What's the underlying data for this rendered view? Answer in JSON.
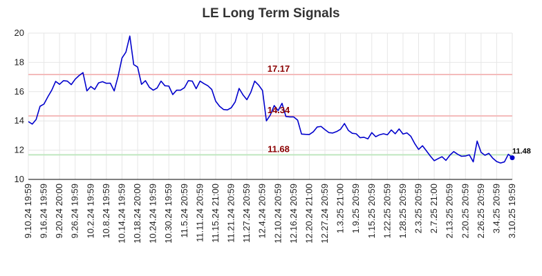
{
  "chart_data": {
    "type": "line",
    "title": "LE Long Term Signals",
    "ylim": [
      10,
      20
    ],
    "yticks": [
      10,
      12,
      14,
      16,
      18,
      20
    ],
    "x_tick_labels": [
      "9.10.24 19:59",
      "9.16.24 19:59",
      "9.20.24 20:00",
      "9.26.24 19:59",
      "10.2.24 19:59",
      "10.8.24 19:59",
      "10.14.24 19:59",
      "10.18.24 20:00",
      "10.24.24 19:59",
      "10.30.24 19:59",
      "11.5.24 20:59",
      "11.11.24 20:59",
      "11.15.24 21:00",
      "11.21.24 20:59",
      "11.27.24 20:59",
      "12.4.24 20:59",
      "12.10.24 20:59",
      "12.16.24 20:59",
      "12.20.24 21:00",
      "12.27.24 20:59",
      "1.3.25 21:00",
      "1.9.25 20:59",
      "1.15.25 20:59",
      "1.22.25 20:59",
      "1.28.25 20:59",
      "2.3.25 20:59",
      "2.7.25 21:00",
      "2.13.25 20:59",
      "2.20.25 20:59",
      "2.26.25 20:59",
      "3.4.25 20:59",
      "3.10.25 19:59"
    ],
    "grid": true,
    "series": [
      {
        "values": [
          13.95,
          13.78,
          14.1,
          15.0,
          15.15,
          15.65,
          16.1,
          16.7,
          16.5,
          16.75,
          16.72,
          16.48,
          16.85,
          17.1,
          17.3,
          16.05,
          16.35,
          16.15,
          16.6,
          16.68,
          16.57,
          16.58,
          16.05,
          17.05,
          18.3,
          18.7,
          19.8,
          17.85,
          17.68,
          16.5,
          16.75,
          16.3,
          16.1,
          16.25,
          16.72,
          16.4,
          16.38,
          15.8,
          16.1,
          16.1,
          16.27,
          16.75,
          16.72,
          16.2,
          16.72,
          16.55,
          16.4,
          16.15,
          15.35,
          15.0,
          14.78,
          14.75,
          14.9,
          15.3,
          16.22,
          15.78,
          15.45,
          15.95,
          16.72,
          16.45,
          16.08,
          14.0,
          14.4,
          15.05,
          14.7,
          15.2,
          14.3,
          14.27,
          14.27,
          14.05,
          13.1,
          13.08,
          13.07,
          13.25,
          13.58,
          13.62,
          13.4,
          13.2,
          13.17,
          13.27,
          13.43,
          13.82,
          13.35,
          13.15,
          13.12,
          12.85,
          12.88,
          12.77,
          13.2,
          12.92,
          13.05,
          13.12,
          13.05,
          13.38,
          13.12,
          13.45,
          13.1,
          13.18,
          12.95,
          12.45,
          12.05,
          12.3,
          11.95,
          11.6,
          11.28,
          11.42,
          11.55,
          11.3,
          11.65,
          11.9,
          11.72,
          11.58,
          11.6,
          11.68,
          11.2,
          12.62,
          11.85,
          11.65,
          11.78,
          11.45,
          11.22,
          11.12,
          11.2,
          11.72,
          11.48
        ],
        "color": "#0000cc"
      }
    ],
    "reference_lines": [
      {
        "value": 17.17,
        "label": "17.17",
        "color": "#f4bbbb",
        "label_color": "#8b0000"
      },
      {
        "value": 14.34,
        "label": "14.34",
        "color": "#f4bbbb",
        "label_color": "#8b0000"
      },
      {
        "value": 11.68,
        "label": "11.68",
        "color": "#bfe6bf",
        "label_color": "#8b0000"
      }
    ],
    "last_value": {
      "value": 11.48,
      "label": "11.48",
      "color": "#0000cc"
    }
  }
}
